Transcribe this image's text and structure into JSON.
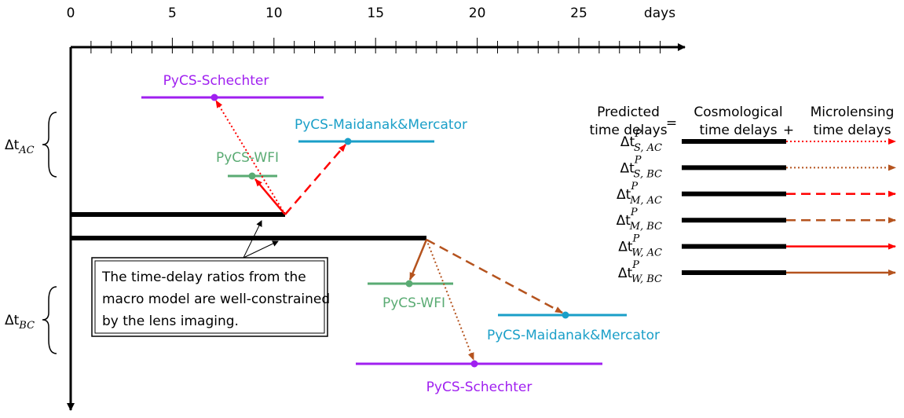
{
  "axis": {
    "ticks": [
      0,
      5,
      10,
      15,
      20,
      25
    ],
    "unit": "days"
  },
  "upper": {
    "label": {
      "delta": "Δt",
      "sub": "AC"
    },
    "measurements": [
      "PyCS-Schechter",
      "PyCS-Maidanak&Mercator",
      "PyCS-WFI"
    ]
  },
  "lower": {
    "label": {
      "delta": "Δt",
      "sub": "BC"
    },
    "measurements": [
      "PyCS-WFI",
      "PyCS-Maidanak&Mercator",
      "PyCS-Schechter"
    ]
  },
  "note": [
    "The time-delay ratios from the",
    "macro model are well-constrained",
    "by the lens imaging."
  ],
  "legend": {
    "header": {
      "predicted": [
        "Predicted",
        "time delays"
      ],
      "equals": "=",
      "cosmological": [
        "Cosmological",
        "time delays"
      ],
      "plus": "+",
      "microlensing": [
        "Microlensing",
        "time delays"
      ]
    },
    "rows": [
      {
        "delta": "Δt",
        "sup": "P",
        "sub": "S, AC"
      },
      {
        "delta": "Δt",
        "sup": "P",
        "sub": "S, BC"
      },
      {
        "delta": "Δt",
        "sup": "P",
        "sub": "M, AC"
      },
      {
        "delta": "Δt",
        "sup": "P",
        "sub": "M, BC"
      },
      {
        "delta": "Δt",
        "sup": "P",
        "sub": "W, AC"
      },
      {
        "delta": "Δt",
        "sup": "P",
        "sub": "W, BC"
      }
    ]
  }
}
